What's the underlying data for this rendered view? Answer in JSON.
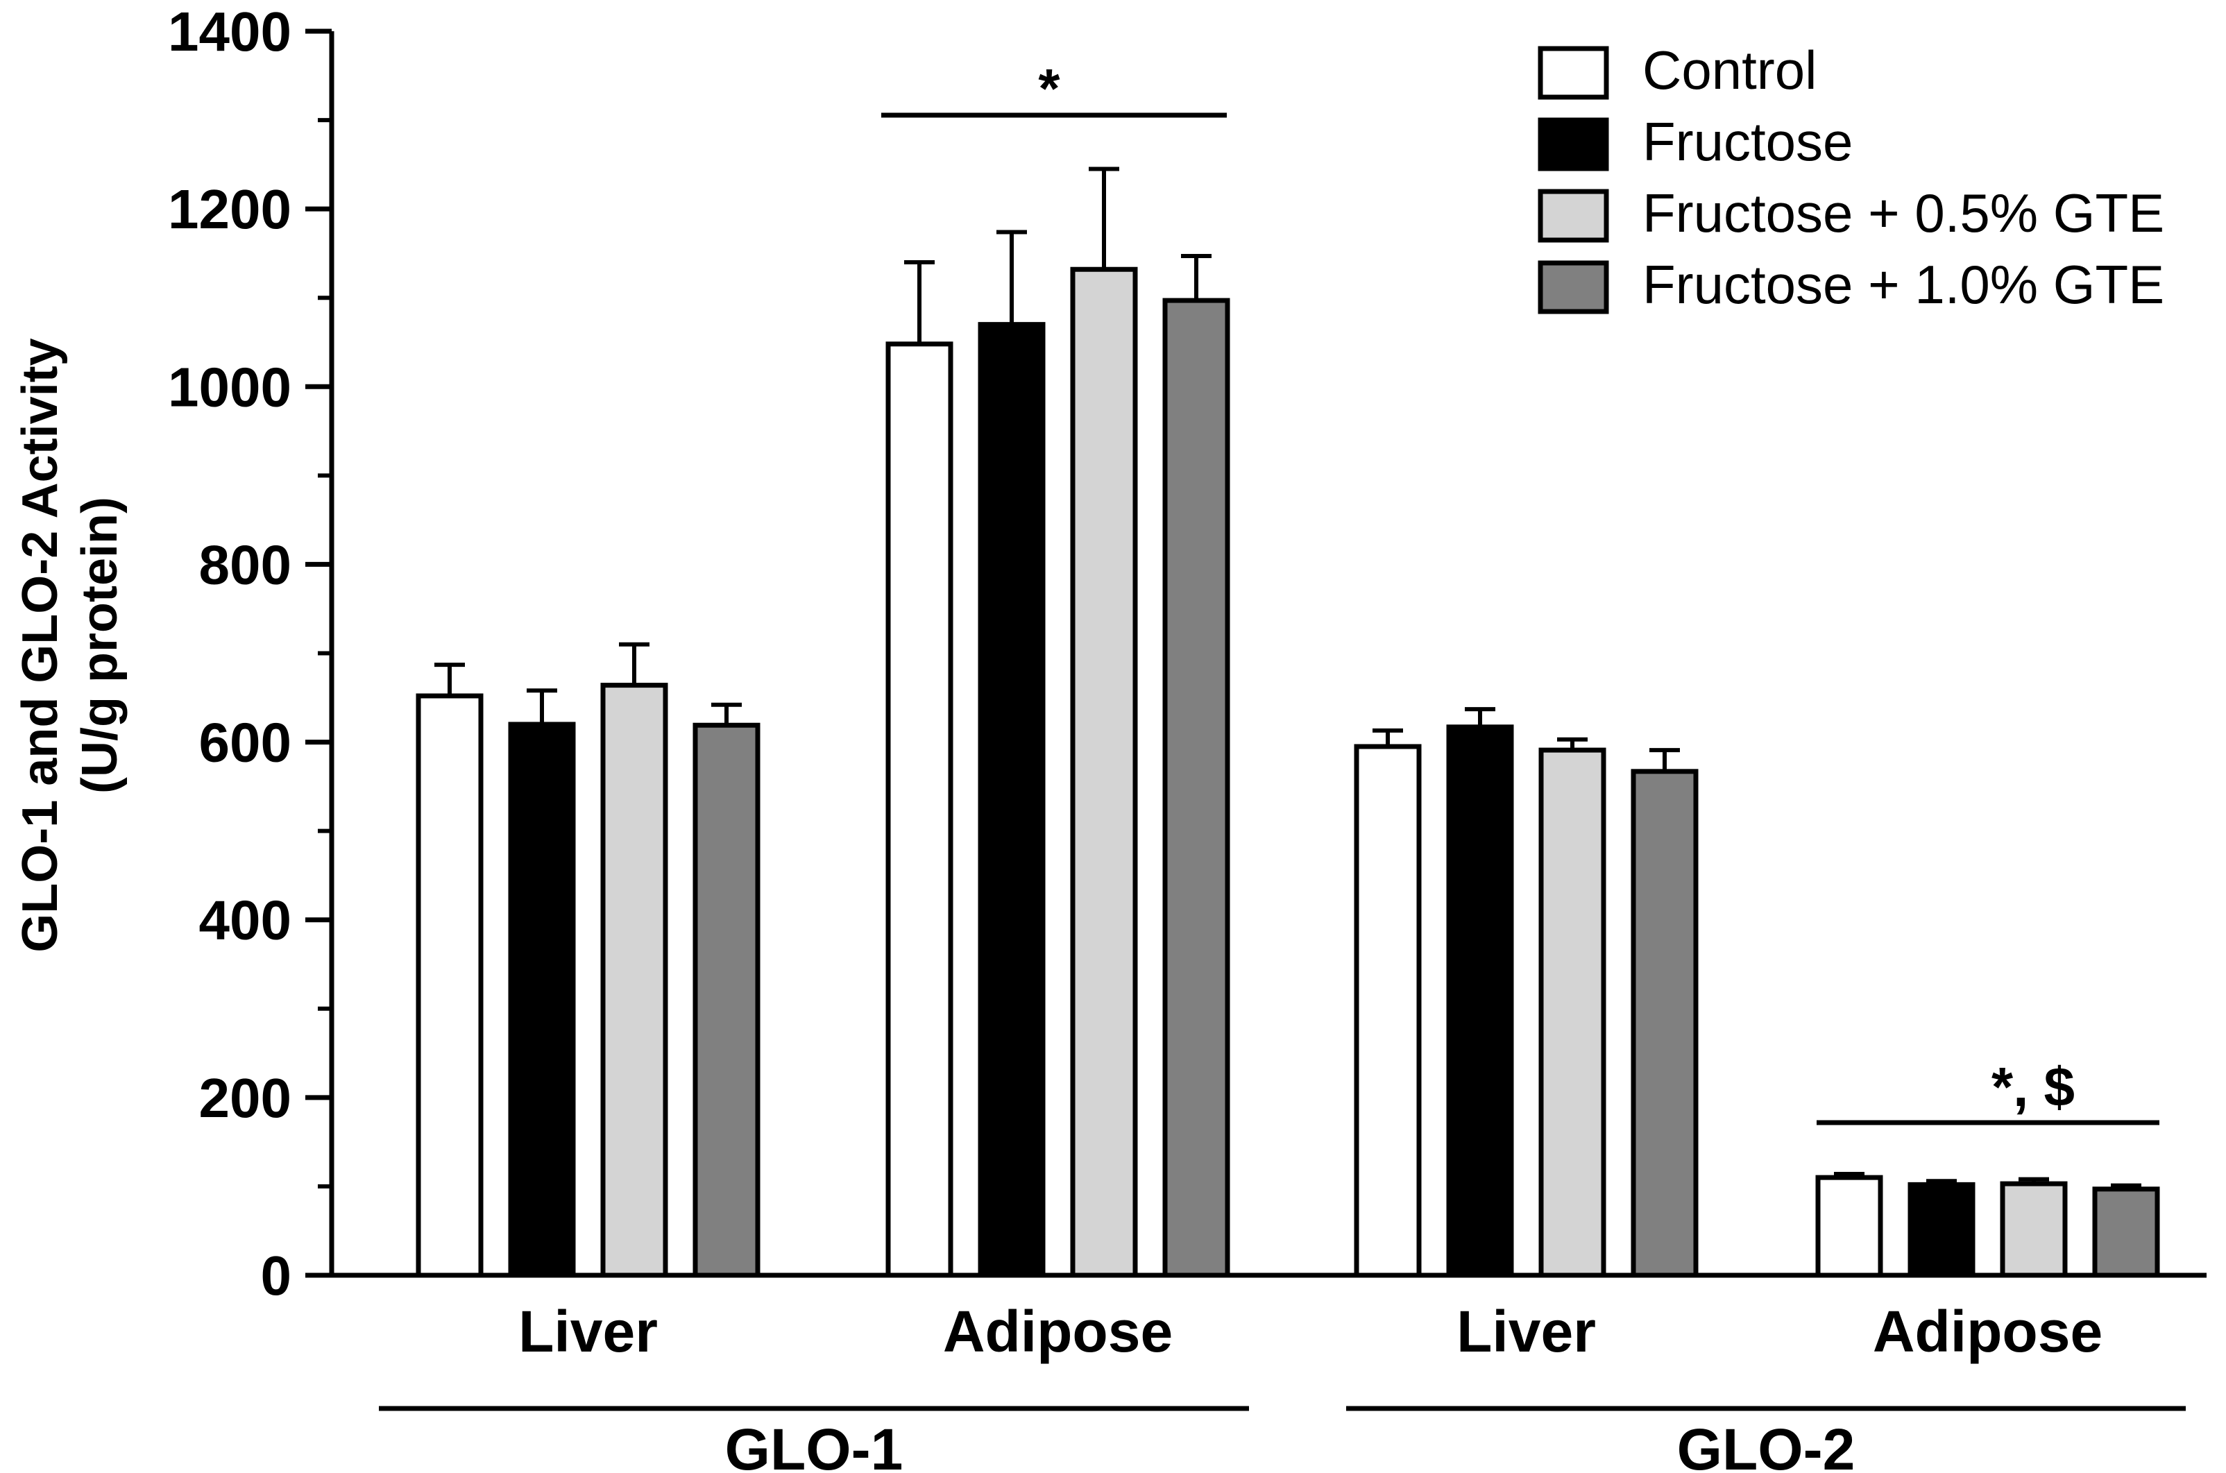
{
  "chart_data": {
    "type": "bar",
    "ylabel": "GLO-1 and GLO-2 Activity",
    "ylabel_unit": "(U/g protein)",
    "ylim": [
      0,
      1400
    ],
    "yticks": [
      0,
      200,
      400,
      600,
      800,
      1000,
      1200,
      1400
    ],
    "grid": false,
    "legend_position": "top-right",
    "series": [
      {
        "name": "Control",
        "color": "#ffffff"
      },
      {
        "name": "Fructose",
        "color": "#000000"
      },
      {
        "name": "Fructose + 0.5% GTE",
        "color": "#d4d4d4"
      },
      {
        "name": "Fructose + 1.0% GTE",
        "color": "#808080"
      }
    ],
    "groups": [
      {
        "label": "GLO-1",
        "categories": [
          {
            "label": "Liver",
            "values": [
              652,
              620,
              664,
              619
            ],
            "errors": [
              35,
              38,
              46,
              23
            ]
          },
          {
            "label": "Adipose",
            "values": [
              1048,
              1070,
              1132,
              1097
            ],
            "errors": [
              92,
              104,
              113,
              50
            ]
          }
        ]
      },
      {
        "label": "GLO-2",
        "categories": [
          {
            "label": "Liver",
            "values": [
              595,
              617,
              591,
              567
            ],
            "errors": [
              18,
              20,
              12,
              24
            ]
          },
          {
            "label": "Adipose",
            "values": [
              110,
              102,
              103,
              97
            ],
            "errors": [
              4,
              4,
              5,
              4
            ]
          }
        ]
      }
    ],
    "annotations": [
      {
        "text": "*",
        "over": "GLO-1 Adipose"
      },
      {
        "text": "*, $",
        "over": "GLO-2 Adipose"
      }
    ]
  }
}
